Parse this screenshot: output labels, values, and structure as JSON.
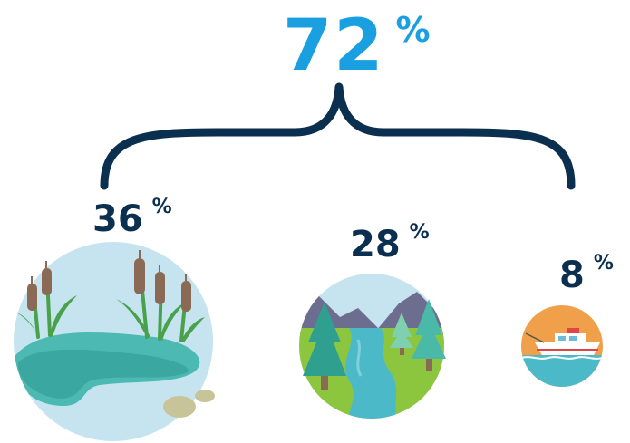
{
  "total": {
    "value": "72",
    "unit": "%"
  },
  "segments": [
    {
      "value": "36",
      "unit": "%",
      "icon": "wetland-icon"
    },
    {
      "value": "28",
      "unit": "%",
      "icon": "forest-river-icon"
    },
    {
      "value": "8",
      "unit": "%",
      "icon": "boat-icon"
    }
  ],
  "colors": {
    "accent": "#1aa0e0",
    "dark": "#0b2f4f"
  }
}
